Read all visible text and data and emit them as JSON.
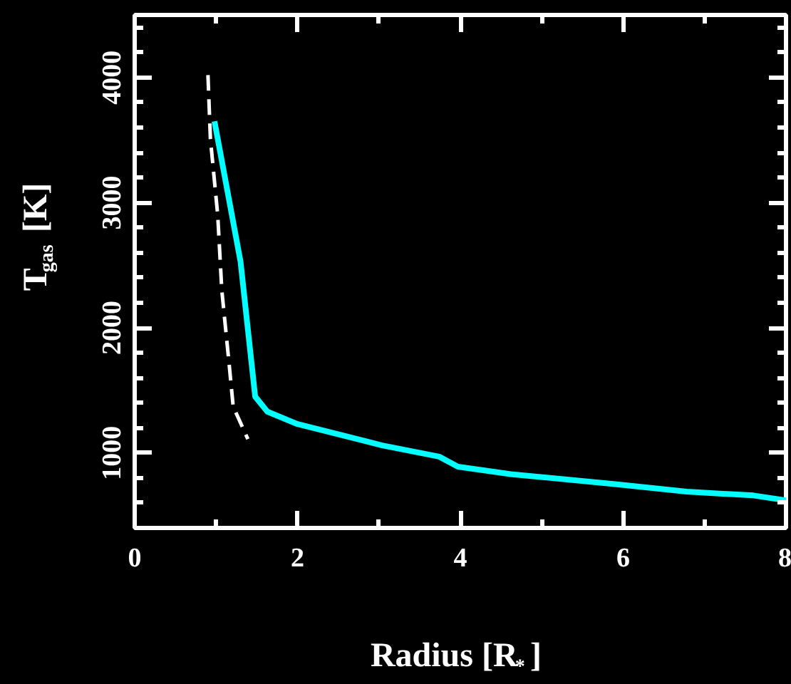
{
  "chart_data": {
    "type": "line",
    "xlabel": "Radius [R$_{*}$]",
    "ylabel": "T$_{gas}$ [K]",
    "xlim": [
      0,
      8
    ],
    "ylim": [
      400,
      4500
    ],
    "xticks": [
      0,
      2,
      4,
      6,
      8
    ],
    "yticks": [
      1000,
      2000,
      3000,
      4000
    ],
    "grid": false,
    "series": [
      {
        "color": "#00ffff",
        "line_style": "solid",
        "x": [
          0.98,
          1.3,
          1.48,
          1.63,
          2.0,
          3.04,
          3.74,
          3.97,
          4.62,
          5.9,
          6.78,
          7.6,
          8.0
        ],
        "values": [
          3650,
          2530,
          1450,
          1330,
          1230,
          1060,
          970,
          890,
          830,
          750,
          690,
          660,
          620
        ]
      },
      {
        "color": "#ffffff",
        "line_style": "dashed",
        "x": [
          0.9,
          0.93,
          1.02,
          1.07,
          1.16,
          1.21,
          1.39
        ],
        "values": [
          4020,
          3510,
          2900,
          2300,
          1710,
          1370,
          1110
        ]
      }
    ]
  }
}
